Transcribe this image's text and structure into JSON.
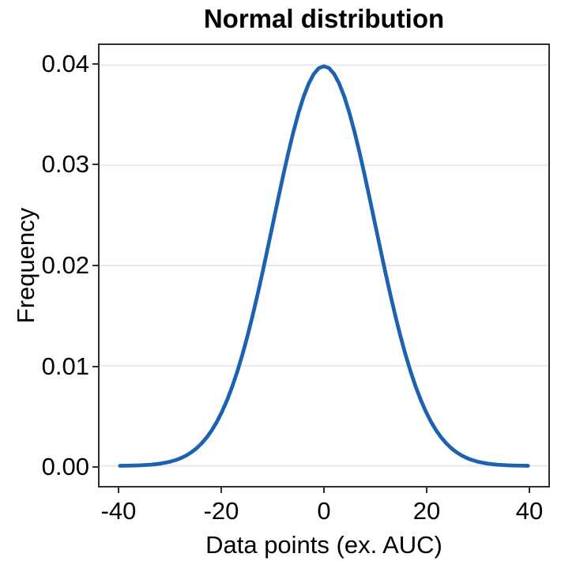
{
  "chart_data": {
    "type": "line",
    "title": "Normal distribution",
    "xlabel": "Data points (ex. AUC)",
    "ylabel": "Frequency",
    "xlim": [
      -44,
      44
    ],
    "ylim": [
      -0.002,
      0.042
    ],
    "x_ticks": [
      -40,
      -20,
      0,
      20,
      40
    ],
    "x_tick_labels": [
      "-40",
      "-20",
      "0",
      "20",
      "40"
    ],
    "y_ticks": [
      0.0,
      0.01,
      0.02,
      0.03,
      0.04
    ],
    "y_tick_labels": [
      "0.00",
      "0.01",
      "0.02",
      "0.03",
      "0.04"
    ],
    "grid": "horizontal-major-only",
    "legend": "none",
    "distribution": {
      "name": "normal",
      "mean": 0,
      "sd": 10,
      "peak_density": 0.03989
    },
    "series": [
      {
        "name": "normal-pdf-curve",
        "x_start": -40,
        "x_step": 1,
        "y": [
          1e-05,
          2e-05,
          3e-05,
          4e-05,
          6e-05,
          9e-05,
          0.00012,
          0.00017,
          0.00024,
          0.00033,
          0.00044,
          0.00059,
          0.00079,
          0.00104,
          0.00136,
          0.00175,
          0.00224,
          0.00283,
          0.00355,
          0.0044,
          0.0054,
          0.00656,
          0.0079,
          0.0094,
          0.01109,
          0.01295,
          0.01497,
          0.01714,
          0.01942,
          0.02179,
          0.0242,
          0.02661,
          0.02897,
          0.03123,
          0.03332,
          0.03521,
          0.03683,
          0.03814,
          0.03911,
          0.0397,
          0.03989,
          0.0397,
          0.03911,
          0.03814,
          0.03683,
          0.03521,
          0.03332,
          0.03123,
          0.02897,
          0.02661,
          0.0242,
          0.02179,
          0.01942,
          0.01714,
          0.01497,
          0.01295,
          0.01109,
          0.0094,
          0.0079,
          0.00656,
          0.0054,
          0.0044,
          0.00355,
          0.00283,
          0.00224,
          0.00175,
          0.00136,
          0.00104,
          0.00079,
          0.00059,
          0.00044,
          0.00033,
          0.00024,
          0.00017,
          0.00012,
          9e-05,
          6e-05,
          4e-05,
          3e-05,
          2e-05,
          1e-05
        ]
      }
    ],
    "colors": {
      "line": "#1b62b1",
      "gridline": "#e8e8e8",
      "panel_border": "#2e2e2e",
      "tick_mark": "#2e2e2e",
      "text": "#000000",
      "background": "#ffffff"
    }
  }
}
